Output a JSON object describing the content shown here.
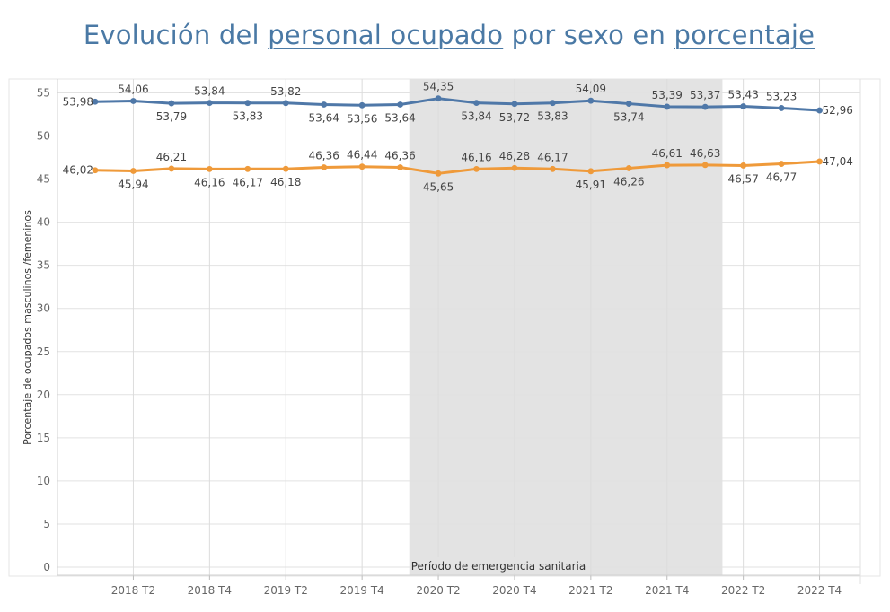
{
  "title": {
    "parts": [
      {
        "text": "Evolución del ",
        "underline": false
      },
      {
        "text": "personal ocupado",
        "underline": true
      },
      {
        "text": " por sexo en ",
        "underline": false
      },
      {
        "text": "porcentaje",
        "underline": true
      }
    ]
  },
  "chart_data": {
    "type": "line",
    "title": "Evolución del personal ocupado por sexo en porcentaje",
    "xlabel": "",
    "ylabel": "Porcentaje de ocupados masculinos /femeninos",
    "ylim": [
      0,
      57
    ],
    "yticks": [
      0,
      5,
      10,
      15,
      20,
      25,
      30,
      35,
      40,
      45,
      50,
      55
    ],
    "grid": true,
    "legend": "none",
    "x": [
      "2018 T1",
      "2018 T2",
      "2018 T3",
      "2018 T4",
      "2019 T1",
      "2019 T2",
      "2019 T3",
      "2019 T4",
      "2020 T1",
      "2020 T2",
      "2020 T3",
      "2020 T4",
      "2021 T1",
      "2021 T2",
      "2021 T3",
      "2021 T4",
      "2022 T1",
      "2022 T2",
      "2022 T3",
      "2022 T4"
    ],
    "x_tick_labels": [
      "2018 T2",
      "2018 T4",
      "2019 T2",
      "2019 T4",
      "2020 T2",
      "2020 T4",
      "2021 T2",
      "2021 T4",
      "2022 T2",
      "2022 T4"
    ],
    "series": [
      {
        "color": "#4f78a8",
        "values": [
          53.98,
          54.06,
          53.79,
          53.84,
          53.83,
          53.82,
          53.64,
          53.56,
          53.64,
          54.35,
          53.84,
          53.72,
          53.83,
          54.09,
          53.74,
          53.39,
          53.37,
          53.43,
          53.23,
          52.96
        ],
        "labels": [
          "53,98",
          "54,06",
          "53,79",
          "53,84",
          "53,83",
          "53,82",
          "53,64",
          "53,56",
          "53,64",
          "54,35",
          "53,84",
          "53,72",
          "53,83",
          "54,09",
          "53,74",
          "53,39",
          "53,37",
          "53,43",
          "53,23",
          "52,96"
        ]
      },
      {
        "color": "#ef9a3a",
        "values": [
          46.02,
          45.94,
          46.21,
          46.16,
          46.17,
          46.18,
          46.36,
          46.44,
          46.36,
          45.65,
          46.16,
          46.28,
          46.17,
          45.91,
          46.26,
          46.61,
          46.63,
          46.57,
          46.77,
          47.04
        ],
        "labels": [
          "46,02",
          "45,94",
          "46,21",
          "46,16",
          "46,17",
          "46,18",
          "46,36",
          "46,44",
          "46,36",
          "45,65",
          "46,16",
          "46,28",
          "46,17",
          "45,91",
          "46,26",
          "46,61",
          "46,63",
          "46,57",
          "46,77",
          "47,04"
        ]
      }
    ],
    "shaded_region": {
      "from": "2020 T1",
      "to": "2022 T1",
      "label": "Período de emergencia sanitaria",
      "color": "#e3e3e3"
    }
  }
}
